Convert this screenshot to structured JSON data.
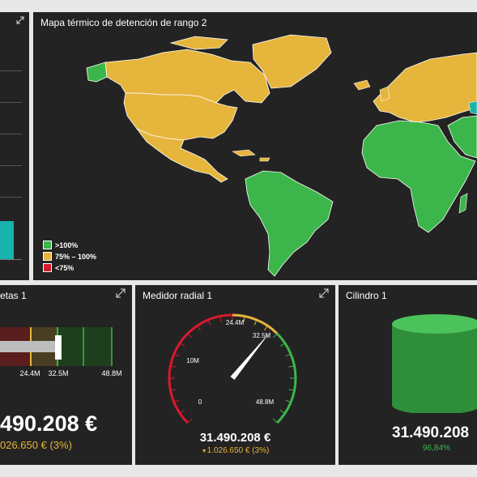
{
  "colors": {
    "panel_bg": "#232323",
    "background": "#e8e8e8",
    "green": "#3cb64a",
    "gold": "#e6b53c",
    "red": "#d9192d",
    "teal": "#17b3ac",
    "delta_amber": "#e9b43a",
    "percent_green": "#3cb64a"
  },
  "icons": {
    "expand": "expand-icon",
    "dropdown": "triangle-down-icon"
  },
  "heatmap": {
    "title": "Mapa térmico de detención de rango 2",
    "legend": [
      {
        "label": ">100%",
        "color": "#3cb64a"
      },
      {
        "label": "75% – 100%",
        "color": "#e6b53c"
      },
      {
        "label": "<75%",
        "color": "#d9192d"
      }
    ]
  },
  "bullet": {
    "title": "etas 1",
    "scale_labels": [
      "24.4M",
      "32.5M",
      "48.8M"
    ],
    "value": "490.208 €",
    "delta": "026.650 € (3%)"
  },
  "gauge": {
    "title": "Medidor radial 1",
    "ticks": [
      "0",
      "10M",
      "24.4M",
      "32.5M",
      "48.8M"
    ],
    "max": 48.8,
    "needle_value": 31.49,
    "value": "31.490.208 €",
    "delta": "1.026.650 € (3%)"
  },
  "cylinder": {
    "title": "Cilindro 1",
    "value": "31.490.208",
    "percent": "96,84%",
    "fill_fraction": 0.9684
  }
}
